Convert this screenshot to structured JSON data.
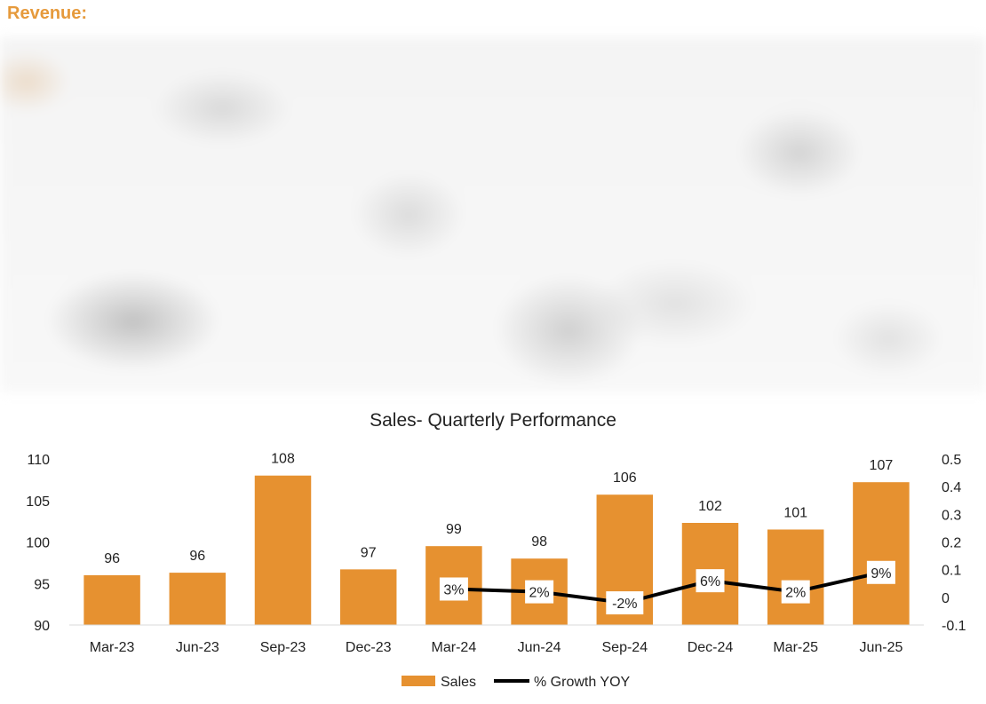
{
  "heading": "Revenue:",
  "colors": {
    "bar": "#E69130",
    "line": "#000000",
    "heading": "#E69A3C"
  },
  "chart_data": {
    "type": "bar",
    "title": "Sales- Quarterly Performance",
    "categories": [
      "Mar-23",
      "Jun-23",
      "Sep-23",
      "Dec-23",
      "Mar-24",
      "Jun-24",
      "Sep-24",
      "Dec-24",
      "Mar-25",
      "Jun-25"
    ],
    "bar_labels": [
      "96",
      "96",
      "108",
      "97",
      "99",
      "98",
      "106",
      "102",
      "101",
      "107"
    ],
    "series": [
      {
        "name": "Sales",
        "type": "bar",
        "axis": "left",
        "values": [
          96,
          96.3,
          108,
          96.7,
          99.5,
          98,
          105.7,
          102.3,
          101.5,
          107.2
        ]
      },
      {
        "name": "% Growth YOY",
        "type": "line",
        "axis": "right",
        "x": [
          "Mar-24",
          "Jun-24",
          "Sep-24",
          "Dec-24",
          "Mar-25",
          "Jun-25"
        ],
        "values": [
          0.03,
          0.02,
          -0.02,
          0.06,
          0.02,
          0.09
        ],
        "labels": [
          "3%",
          "2%",
          "-2%",
          "6%",
          "2%",
          "9%"
        ]
      }
    ],
    "ylim": [
      90,
      110
    ],
    "yticks": [
      "90",
      "95",
      "100",
      "105",
      "110"
    ],
    "y2lim": [
      -0.1,
      0.5
    ],
    "y2ticks": [
      "-0.1",
      "0",
      "0.1",
      "0.2",
      "0.3",
      "0.4",
      "0.5"
    ],
    "grid": false,
    "legend": "bottom"
  }
}
